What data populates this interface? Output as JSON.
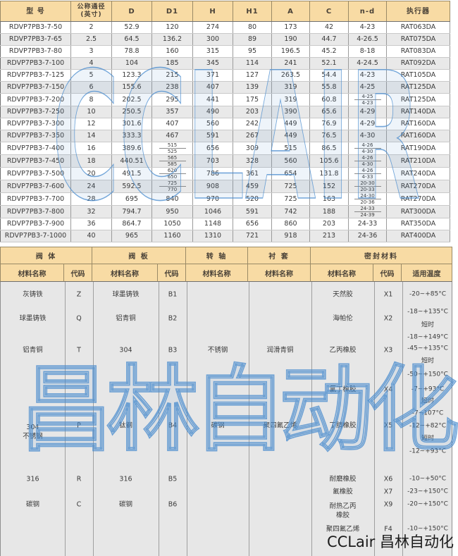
{
  "colors": {
    "header_bg": "#F8DBA4",
    "row_alt": "#E9E9E9",
    "panel_bg": "#E7E7E7",
    "border": "#8F8F8F",
    "text": "#3A3A3A",
    "watermark_blue": "#4E8FD0"
  },
  "watermark": {
    "latin": "CCLAIR",
    "cjk": "昌林自动化",
    "footer": "CCLair 昌林自动化"
  },
  "spec_table": {
    "headers": [
      "型 号",
      "公称通径\n(英寸)",
      "D",
      "D1",
      "H",
      "H1",
      "A",
      "C",
      "n-d",
      "执行器"
    ],
    "rows": [
      {
        "model": "RDVP7PB3-7-50",
        "dn": "2",
        "d": "52.9",
        "d1": [
          "120"
        ],
        "h": "274",
        "h1": "80",
        "a": "173",
        "c": "42",
        "nd": [
          "4-23"
        ],
        "act": "RAT063DA"
      },
      {
        "model": "RDVP7PB3-7-65",
        "dn": "2.5",
        "d": "64.5",
        "d1": [
          "136.2"
        ],
        "h": "300",
        "h1": "89",
        "a": "190",
        "c": "44.7",
        "nd": [
          "4-26.5"
        ],
        "act": "RAT075DA"
      },
      {
        "model": "RDVP7PB3-7-80",
        "dn": "3",
        "d": "78.8",
        "d1": [
          "160"
        ],
        "h": "315",
        "h1": "95",
        "a": "196.5",
        "c": "45.2",
        "nd": [
          "8-18"
        ],
        "act": "RAT083DA"
      },
      {
        "model": "RDVP7PB3-7-100",
        "dn": "4",
        "d": "104",
        "d1": [
          "185"
        ],
        "h": "345",
        "h1": "114",
        "a": "241",
        "c": "52.1",
        "nd": [
          "4-24.5"
        ],
        "act": "RAT092DA"
      },
      {
        "model": "RDVP7PB3-7-125",
        "dn": "5",
        "d": "123.3",
        "d1": [
          "215"
        ],
        "h": "371",
        "h1": "127",
        "a": "263.5",
        "c": "54.4",
        "nd": [
          "4-23"
        ],
        "act": "RAT105DA"
      },
      {
        "model": "RDVP7PB3-7-150",
        "dn": "6",
        "d": "155.6",
        "d1": [
          "238"
        ],
        "h": "407",
        "h1": "139",
        "a": "319",
        "c": "55.8",
        "nd": [
          "4-25"
        ],
        "act": "RAT125DA"
      },
      {
        "model": "RDVP7PB3-7-200",
        "dn": "8",
        "d": "202.5",
        "d1": [
          "295"
        ],
        "h": "441",
        "h1": "175",
        "a": "319",
        "c": "60.8",
        "nd": [
          "4-25",
          "4-23"
        ],
        "act": "RAT125DA"
      },
      {
        "model": "RDVP7PB3-7-250",
        "dn": "10",
        "d": "250.5",
        "d1": [
          "357"
        ],
        "h": "490",
        "h1": "203",
        "a": "390",
        "c": "65.6",
        "nd": [
          "4-29"
        ],
        "act": "RAT140DA"
      },
      {
        "model": "RDVP7PB3-7-300",
        "dn": "12",
        "d": "301.6",
        "d1": [
          "407"
        ],
        "h": "560",
        "h1": "242",
        "a": "449",
        "c": "76.9",
        "nd": [
          "4-29"
        ],
        "act": "RAT160DA"
      },
      {
        "model": "RDVP7PB3-7-350",
        "dn": "14",
        "d": "333.3",
        "d1": [
          "467"
        ],
        "h": "591",
        "h1": "267",
        "a": "449",
        "c": "76.5",
        "nd": [
          "4-30"
        ],
        "act": "RAT160DA"
      },
      {
        "model": "RDVP7PB3-7-400",
        "dn": "16",
        "d": "389.6",
        "d1": [
          "515",
          "525"
        ],
        "h": "656",
        "h1": "309",
        "a": "515",
        "c": "86.5",
        "nd": [
          "4-26",
          "4-30"
        ],
        "act": "RAT190DA"
      },
      {
        "model": "RDVP7PB3-7-450",
        "dn": "18",
        "d": "440.51",
        "d1": [
          "565",
          "585"
        ],
        "h": "703",
        "h1": "328",
        "a": "560",
        "c": "105.6",
        "nd": [
          "4-26",
          "4-30"
        ],
        "act": "RAT210DA"
      },
      {
        "model": "RDVP7PB3-7-500",
        "dn": "20",
        "d": "491.5",
        "d1": [
          "620",
          "650"
        ],
        "h": "786",
        "h1": "361",
        "a": "654",
        "c": "131.8",
        "nd": [
          "4-26",
          "4-33"
        ],
        "act": "RAT240DA"
      },
      {
        "model": "RDVP7PB3-7-600",
        "dn": "24",
        "d": "592.5",
        "d1": [
          "725",
          "770"
        ],
        "h": "908",
        "h1": "459",
        "a": "725",
        "c": "152",
        "nd": [
          "20-30",
          "20-33"
        ],
        "act": "RAT270DA"
      },
      {
        "model": "RDVP7PB3-7-700",
        "dn": "28",
        "d": "695",
        "d1": [
          "840"
        ],
        "h": "970",
        "h1": "520",
        "a": "725",
        "c": "163",
        "nd": [
          "24-30",
          "20-36"
        ],
        "act": "RAT270DA"
      },
      {
        "model": "RDVP7PB3-7-800",
        "dn": "32",
        "d": "794.7",
        "d1": [
          "950"
        ],
        "h": "1046",
        "h1": "591",
        "a": "742",
        "c": "188",
        "nd": [
          "24-33",
          "24-39"
        ],
        "act": "RAT300DA"
      },
      {
        "model": "RDVP7PB3-7-900",
        "dn": "36",
        "d": "864.7",
        "d1": [
          "1050"
        ],
        "h": "1148",
        "h1": "656",
        "a": "860",
        "c": "203",
        "nd": [
          "24-33"
        ],
        "act": "RAT350DA"
      },
      {
        "model": "RDVP7PB3-7-1000",
        "dn": "40",
        "d": "965",
        "d1": [
          "1160"
        ],
        "h": "1310",
        "h1": "721",
        "a": "918",
        "c": "213",
        "nd": [
          "24-36"
        ],
        "act": "RAT400DA"
      }
    ]
  },
  "material_table": {
    "groups": [
      {
        "label": "阀  体",
        "span": 2
      },
      {
        "label": "阀  板",
        "span": 2
      },
      {
        "label": "转  轴",
        "span": 1
      },
      {
        "label": "衬  套",
        "span": 1
      },
      {
        "label": "密封材料",
        "span": 3
      }
    ],
    "subheaders": [
      "材料名称",
      "代码",
      "材料名称",
      "代码",
      "材料名称",
      "材料名称",
      "材料名称",
      "代码",
      "适用温度"
    ],
    "valve_body": [
      {
        "name": "灰铸铁",
        "code": "Z"
      },
      {
        "name": "球墨铸铁",
        "code": "Q"
      },
      {
        "name": "铝青铜",
        "code": "T"
      },
      {
        "name": "304\n不锈钢",
        "code": "P"
      },
      {
        "name": "316",
        "code": "R"
      },
      {
        "name": "碳钢",
        "code": "C"
      }
    ],
    "valve_plate": [
      {
        "name": "球墨铸铁",
        "code": "B1"
      },
      {
        "name": "铝青铜",
        "code": "B2"
      },
      {
        "name": "304",
        "code": "B3"
      },
      {
        "name": "钛钢",
        "code": "B4"
      },
      {
        "name": "316",
        "code": "B5"
      },
      {
        "name": "碳钢",
        "code": "B6"
      }
    ],
    "shaft": [
      "不锈钢",
      "碳钢"
    ],
    "liner": [
      "润滑青铜",
      "聚四氟乙烯"
    ],
    "seal": [
      {
        "name": "天然胶",
        "code": "X1",
        "temp": [
          "-20~+85°C"
        ]
      },
      {
        "name": "海帕伦",
        "code": "X2",
        "temp": [
          "-18~+135°C",
          "短时",
          "-18~+149°C"
        ]
      },
      {
        "name": "乙丙橡胶",
        "code": "X3",
        "temp": [
          "-45~+135°C",
          "短时",
          "-50~+150°C"
        ]
      },
      {
        "name": "氯丁橡胶",
        "code": "X4",
        "temp": [
          "-7~+93°C",
          "短时",
          "-7~107°C"
        ]
      },
      {
        "name": "丁腈橡胶",
        "code": "X5",
        "temp": [
          "-12~+82°C",
          "短时",
          "-12~+93°C"
        ]
      },
      {
        "name": "耐磨橡胶",
        "code": "X6",
        "temp": [
          "-10~+50°C"
        ]
      },
      {
        "name": "氟橡胶",
        "code": "X7",
        "temp": [
          "-23~+150°C"
        ]
      },
      {
        "name": "耐热乙丙\n橡胶",
        "code": "X9",
        "temp": [
          "-20~+150°C"
        ]
      },
      {
        "name": "聚四氟乙烯",
        "code": "F4",
        "temp": [
          "-10~+150°C"
        ]
      }
    ]
  }
}
